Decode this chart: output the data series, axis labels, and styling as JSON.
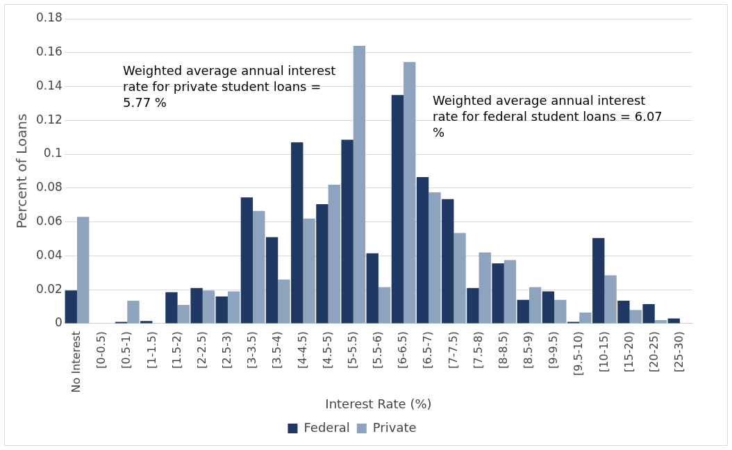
{
  "chart_data": {
    "type": "bar",
    "xlabel": "Interest Rate (%)",
    "ylabel": "Percent of Loans",
    "categories": [
      "No Interest",
      "[0-0.5)",
      "[0.5-1)",
      "[1-1.5)",
      "[1.5-2)",
      "[2-2.5)",
      "[2.5-3)",
      "[3-3.5)",
      "[3.5-4)",
      "[4-4.5)",
      "[4.5-5)",
      "[5-5.5)",
      "[5.5-6)",
      "[6-6.5)",
      "[6.5-7)",
      "[7-7.5)",
      "[7.5-8)",
      "[8-8.5)",
      "[8.5-9)",
      "[9-9.5)",
      "[9.5-10)",
      "[10-15)",
      "[15-20)",
      "[20-25)",
      "[25-30)"
    ],
    "series": [
      {
        "name": "Federal",
        "color": "#203864",
        "values": [
          0.0195,
          0,
          0.001,
          0.0015,
          0.0185,
          0.021,
          0.016,
          0.0745,
          0.051,
          0.107,
          0.0705,
          0.1085,
          0.0415,
          0.135,
          0.0865,
          0.0735,
          0.021,
          0.0355,
          0.014,
          0.019,
          0.001,
          0.0505,
          0.0135,
          0.0115,
          0.003
        ]
      },
      {
        "name": "Private",
        "color": "#8ea4be",
        "values": [
          0.063,
          0,
          0.0135,
          0,
          0.011,
          0.0195,
          0.019,
          0.0665,
          0.026,
          0.062,
          0.082,
          0.164,
          0.0215,
          0.1545,
          0.0775,
          0.0535,
          0.042,
          0.0375,
          0.0215,
          0.014,
          0.0065,
          0.0285,
          0.008,
          0.002,
          0
        ]
      }
    ],
    "ylim": [
      0,
      0.18
    ],
    "yticks": [
      0,
      0.02,
      0.04,
      0.06,
      0.08,
      0.1,
      0.12,
      0.14,
      0.16,
      0.18
    ],
    "grid": "y",
    "legend": "bottom",
    "annotations": [
      "Weighted average annual interest rate for private student loans = 5.77 %",
      "Weighted average annual interest rate for federal student loans = 6.07 %"
    ]
  }
}
